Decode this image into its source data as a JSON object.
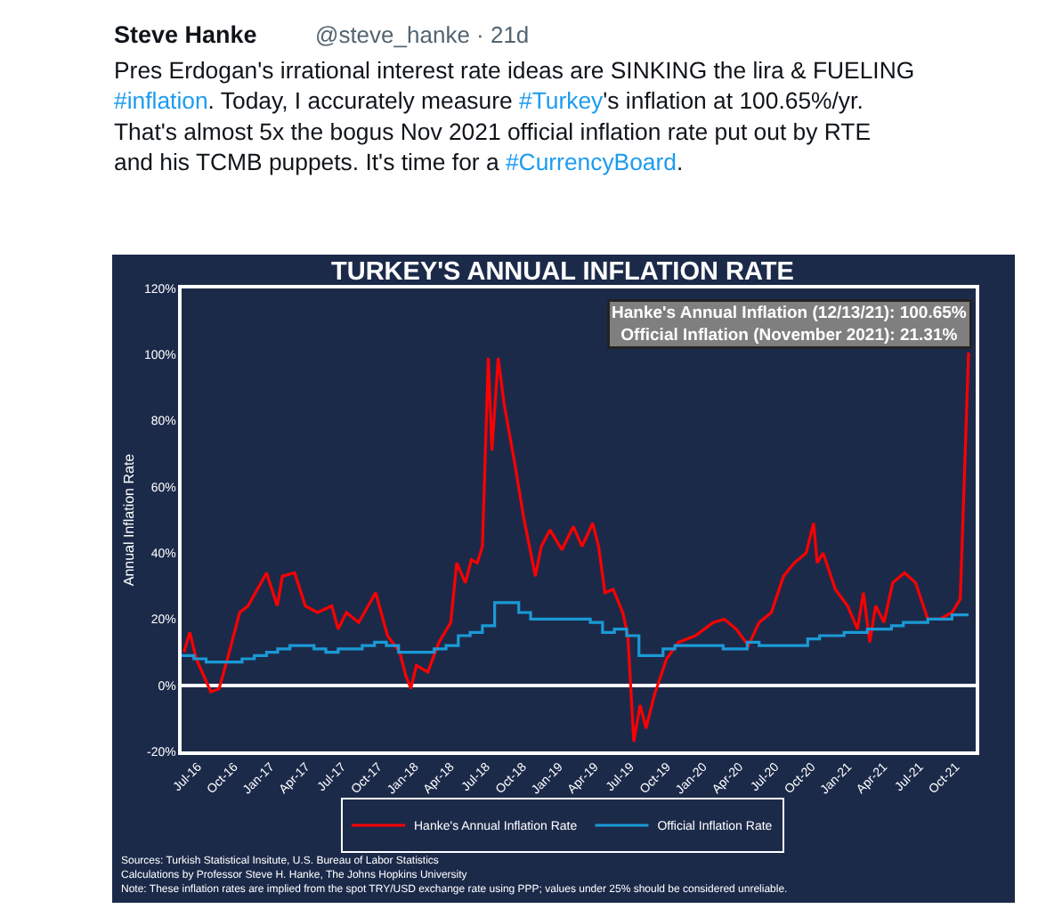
{
  "chart_data": {
    "type": "line",
    "title": "TURKEY'S ANNUAL INFLATION RATE",
    "ylabel": "Annual Inflation Rate",
    "annotations": [
      "Steve Hanke",
      "@steve_hanke · 21d",
      "Pres Erdogan's irrational interest rate ideas are SINKING the lira & FUELING #inflation. Today, I accurately measure #Turkey's inflation at 100.65%/yr. That's almost 5x the bogus Nov 2021 official inflation rate put out by RTE and his TCMB puppets. It's time for a #CurrencyBoard.",
      "Hanke's Annual Inflation (12/13/21): 100.65%\nOfficial Inflation (November 2021): 21.31%",
      "Sources: Turkish Statistical Insitute, U.S. Bureau of Labor Statistics",
      "Calculations by Professor Steve H. Hanke, The Johns Hopkins University",
      "Note: These inflation rates are implied from the spot TRY/USD exchange rate using PPP; values under 25% should be considered unreliable."
    ],
    "xlim": [
      "2016-07-01",
      "2021-12-31"
    ],
    "xticks": [
      {
        "value": "2016-07-01",
        "label": "Jul-16"
      },
      {
        "value": "2016-10-01",
        "label": "Oct-16"
      },
      {
        "value": "2017-01-01",
        "label": "Jan-17"
      },
      {
        "value": "2017-04-01",
        "label": "Apr-17"
      },
      {
        "value": "2017-07-01",
        "label": "Jul-17"
      },
      {
        "value": "2017-10-01",
        "label": "Oct-17"
      },
      {
        "value": "2018-01-01",
        "label": "Jan-18"
      },
      {
        "value": "2018-04-01",
        "label": "Apr-18"
      },
      {
        "value": "2018-07-01",
        "label": "Jul-18"
      },
      {
        "value": "2018-10-01",
        "label": "Oct-18"
      },
      {
        "value": "2019-01-01",
        "label": "Jan-19"
      },
      {
        "value": "2019-04-01",
        "label": "Apr-19"
      },
      {
        "value": "2019-07-01",
        "label": "Jul-19"
      },
      {
        "value": "2019-10-01",
        "label": "Oct-19"
      },
      {
        "value": "2020-01-01",
        "label": "Jan-20"
      },
      {
        "value": "2020-04-01",
        "label": "Apr-20"
      },
      {
        "value": "2020-07-01",
        "label": "Jul-20"
      },
      {
        "value": "2020-10-01",
        "label": "Oct-20"
      },
      {
        "value": "2021-01-01",
        "label": "Jan-21"
      },
      {
        "value": "2021-04-01",
        "label": "Apr-21"
      },
      {
        "value": "2021-07-01",
        "label": "Jul-21"
      },
      {
        "value": "2021-10-01",
        "label": "Oct-21"
      }
    ],
    "ylim": [
      -20,
      120
    ],
    "yticks": [
      {
        "value": -20,
        "label": "-20%"
      },
      {
        "value": 0,
        "label": "0%"
      },
      {
        "value": 20,
        "label": "20%"
      },
      {
        "value": 40,
        "label": "40%"
      },
      {
        "value": 60,
        "label": "60%"
      },
      {
        "value": 80,
        "label": "80%"
      },
      {
        "value": 100,
        "label": "100%"
      },
      {
        "value": 120,
        "label": "120%"
      }
    ],
    "legend": "bottom",
    "series": [
      {
        "name": "Hanke's Annual Inflation Rate",
        "color": "#ff0000",
        "x": [
          "2016-07-07",
          "2016-07-22",
          "2016-08-07",
          "2016-09-13",
          "2016-10-04",
          "2016-10-25",
          "2016-11-25",
          "2016-12-16",
          "2017-02-01",
          "2017-02-28",
          "2017-03-13",
          "2017-04-13",
          "2017-05-10",
          "2017-06-10",
          "2017-07-16",
          "2017-08-01",
          "2017-08-22",
          "2017-09-22",
          "2017-11-04",
          "2017-12-04",
          "2018-01-04",
          "2018-01-19",
          "2018-02-01",
          "2018-02-15",
          "2018-03-16",
          "2018-04-13",
          "2018-05-13",
          "2018-05-28",
          "2018-06-19",
          "2018-07-04",
          "2018-07-19",
          "2018-08-01",
          "2018-08-16",
          "2018-08-25",
          "2018-09-10",
          "2018-09-25",
          "2018-10-22",
          "2018-11-13",
          "2018-12-13",
          "2018-12-28",
          "2019-01-19",
          "2019-02-18",
          "2019-03-19",
          "2019-04-10",
          "2019-05-07",
          "2019-05-22",
          "2019-06-07",
          "2019-06-28",
          "2019-07-22",
          "2019-08-04",
          "2019-08-19",
          "2019-09-04",
          "2019-09-19",
          "2019-10-10",
          "2019-11-10",
          "2019-12-10",
          "2020-01-22",
          "2020-03-07",
          "2020-04-04",
          "2020-05-04",
          "2020-06-04",
          "2020-07-01",
          "2020-08-01",
          "2020-09-01",
          "2020-09-28",
          "2020-10-28",
          "2020-11-16",
          "2020-11-25",
          "2020-12-10",
          "2021-01-10",
          "2021-02-10",
          "2021-03-07",
          "2021-03-22",
          "2021-04-07",
          "2021-04-22",
          "2021-05-13",
          "2021-06-04",
          "2021-07-04",
          "2021-08-01",
          "2021-09-01",
          "2021-10-01",
          "2021-11-01",
          "2021-11-22",
          "2021-12-13"
        ],
        "values": [
          10,
          16,
          8,
          -2,
          -1,
          8,
          22,
          24,
          34,
          24,
          33,
          34,
          24,
          22,
          24,
          17,
          22,
          19,
          28,
          15,
          10,
          3,
          -1,
          6,
          4,
          13,
          19,
          37,
          31,
          38,
          37,
          42,
          99,
          71,
          99,
          85,
          67,
          51,
          33,
          42,
          47,
          41,
          48,
          42,
          49,
          42,
          28,
          29,
          22,
          15,
          -17,
          -6,
          -13,
          -3,
          8,
          13,
          15,
          19,
          20,
          17,
          12,
          19,
          22,
          33,
          37,
          40,
          49,
          37,
          40,
          29,
          24,
          17,
          28,
          13,
          24,
          19,
          31,
          34,
          31,
          20,
          20,
          22,
          26,
          100.65
        ]
      },
      {
        "name": "Official Inflation Rate",
        "type": "step",
        "color": "#1a9ad6",
        "x": [
          "2016-07",
          "2016-08",
          "2016-09",
          "2016-10",
          "2016-11",
          "2016-12",
          "2017-01",
          "2017-02",
          "2017-03",
          "2017-04",
          "2017-05",
          "2017-06",
          "2017-07",
          "2017-08",
          "2017-09",
          "2017-10",
          "2017-11",
          "2017-12",
          "2018-01",
          "2018-02",
          "2018-03",
          "2018-04",
          "2018-05",
          "2018-06",
          "2018-07",
          "2018-08",
          "2018-09",
          "2018-10",
          "2018-11",
          "2018-12",
          "2019-01",
          "2019-02",
          "2019-03",
          "2019-04",
          "2019-05",
          "2019-06",
          "2019-07",
          "2019-08",
          "2019-09",
          "2019-10",
          "2019-11",
          "2019-12",
          "2020-01",
          "2020-02",
          "2020-03",
          "2020-04",
          "2020-05",
          "2020-06",
          "2020-07",
          "2020-08",
          "2020-09",
          "2020-10",
          "2020-11",
          "2020-12",
          "2021-01",
          "2021-02",
          "2021-03",
          "2021-04",
          "2021-05",
          "2021-06",
          "2021-07",
          "2021-08",
          "2021-09",
          "2021-10",
          "2021-11",
          "2021-12-13"
        ],
        "values": [
          9,
          8,
          7,
          7,
          7,
          8,
          9,
          10,
          11,
          12,
          12,
          11,
          10,
          11,
          11,
          12,
          13,
          12,
          10,
          10,
          10,
          11,
          12,
          15,
          16,
          18,
          25,
          25,
          22,
          20,
          20,
          20,
          20,
          20,
          19,
          16,
          17,
          15,
          9,
          9,
          11,
          12,
          12,
          12,
          12,
          11,
          11,
          13,
          12,
          12,
          12,
          12,
          14,
          15,
          15,
          16,
          16,
          17,
          17,
          18,
          19,
          19,
          20,
          20,
          21.31,
          21.31
        ]
      }
    ]
  }
}
